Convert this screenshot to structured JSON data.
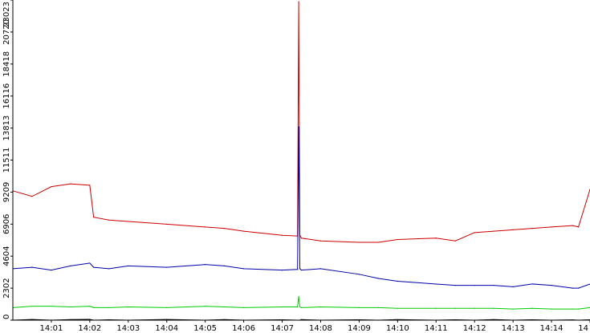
{
  "chart_data": {
    "type": "line",
    "xlabel": "",
    "ylabel": "",
    "grid": false,
    "legend": "none",
    "xlim": [
      14.0,
      15.0
    ],
    "ylim": [
      0,
      23023
    ],
    "x_ticks": [
      {
        "label": "14:01",
        "value": 14.0667
      },
      {
        "label": "14:02",
        "value": 14.1333
      },
      {
        "label": "14:03",
        "value": 14.2
      },
      {
        "label": "14:04",
        "value": 14.2667
      },
      {
        "label": "14:05",
        "value": 14.3333
      },
      {
        "label": "14:06",
        "value": 14.4
      },
      {
        "label": "14:07",
        "value": 14.4667
      },
      {
        "label": "14:08",
        "value": 14.5333
      },
      {
        "label": "14:09",
        "value": 14.6
      },
      {
        "label": "14:10",
        "value": 14.6667
      },
      {
        "label": "14:11",
        "value": 14.7333
      },
      {
        "label": "14:12",
        "value": 14.8
      },
      {
        "label": "14:13",
        "value": 14.8667
      },
      {
        "label": "14:14",
        "value": 14.9333
      },
      {
        "label": "14",
        "value": 15.0
      }
    ],
    "y_ticks": [
      {
        "label": "0",
        "value": 0
      },
      {
        "label": "2302",
        "value": 2302
      },
      {
        "label": "4604",
        "value": 4604
      },
      {
        "label": "6906",
        "value": 6906
      },
      {
        "label": "9209",
        "value": 9209
      },
      {
        "label": "11511",
        "value": 11511
      },
      {
        "label": "13813",
        "value": 13813
      },
      {
        "label": "16116",
        "value": 16116
      },
      {
        "label": "18418",
        "value": 18418
      },
      {
        "label": "20720",
        "value": 20720
      },
      {
        "label": "23023",
        "value": 23023
      }
    ],
    "x": [
      14.0,
      14.0333,
      14.0667,
      14.1,
      14.1333,
      14.14,
      14.1667,
      14.2,
      14.2667,
      14.3333,
      14.3667,
      14.4,
      14.4667,
      14.4933,
      14.4953,
      14.4973,
      14.5,
      14.5333,
      14.6,
      14.6333,
      14.6667,
      14.7333,
      14.7667,
      14.8,
      14.8333,
      14.8667,
      14.9,
      14.9333,
      14.97,
      14.98,
      15.0
    ],
    "series": [
      {
        "color": "#cc0000",
        "values": [
          9300,
          8900,
          9600,
          9800,
          9700,
          7400,
          7200,
          7100,
          6900,
          6700,
          6600,
          6400,
          6100,
          6050,
          22900,
          6100,
          5900,
          5700,
          5600,
          5600,
          5800,
          5900,
          5700,
          6300,
          6400,
          6500,
          6600,
          6700,
          6800,
          6700,
          9400
        ]
      },
      {
        "color": "#0000aa",
        "values": [
          3700,
          3800,
          3600,
          3900,
          4100,
          3800,
          3700,
          3900,
          3800,
          4000,
          3900,
          3700,
          3600,
          3650,
          13900,
          3700,
          3600,
          3700,
          3300,
          3000,
          2800,
          2600,
          2500,
          2500,
          2500,
          2400,
          2600,
          2500,
          2300,
          2300,
          2600
        ]
      },
      {
        "color": "#00cc00",
        "values": [
          900,
          1000,
          1000,
          950,
          1000,
          900,
          900,
          950,
          900,
          1000,
          950,
          900,
          950,
          950,
          1700,
          950,
          900,
          950,
          900,
          900,
          850,
          850,
          850,
          850,
          850,
          800,
          850,
          800,
          800,
          800,
          900
        ]
      },
      {
        "color": "#000000",
        "values": [
          0,
          50,
          0,
          40,
          60,
          0,
          30,
          0,
          50,
          0,
          40,
          0,
          30,
          0,
          0,
          0,
          40,
          0,
          30,
          0,
          40,
          0,
          30,
          0,
          40,
          0,
          30,
          0,
          20,
          0,
          30
        ]
      }
    ]
  }
}
